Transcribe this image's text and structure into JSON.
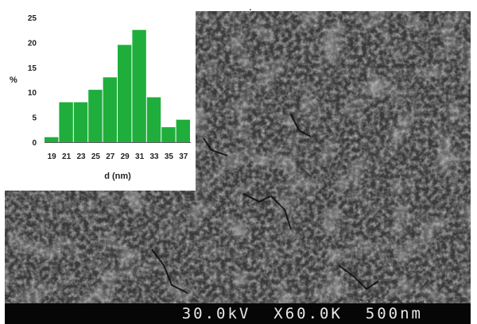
{
  "top_mark": ".",
  "sem": {
    "voltage": "30.0kV",
    "magnification": "X60.0K",
    "scale_label": "500nm",
    "scale_dots": "··········"
  },
  "chart_data": {
    "type": "bar",
    "categories": [
      "19",
      "21",
      "23",
      "25",
      "27",
      "29",
      "31",
      "33",
      "35",
      "37"
    ],
    "values": [
      1,
      8,
      8,
      10.5,
      13,
      19.5,
      22.5,
      9,
      3,
      4.5
    ],
    "title": "",
    "xlabel": "d (nm)",
    "ylabel": "%",
    "ylim": [
      0,
      25
    ],
    "yticks": [
      0,
      5,
      10,
      15,
      20,
      25
    ],
    "grid": false,
    "bar_color": "#1fae3c"
  }
}
